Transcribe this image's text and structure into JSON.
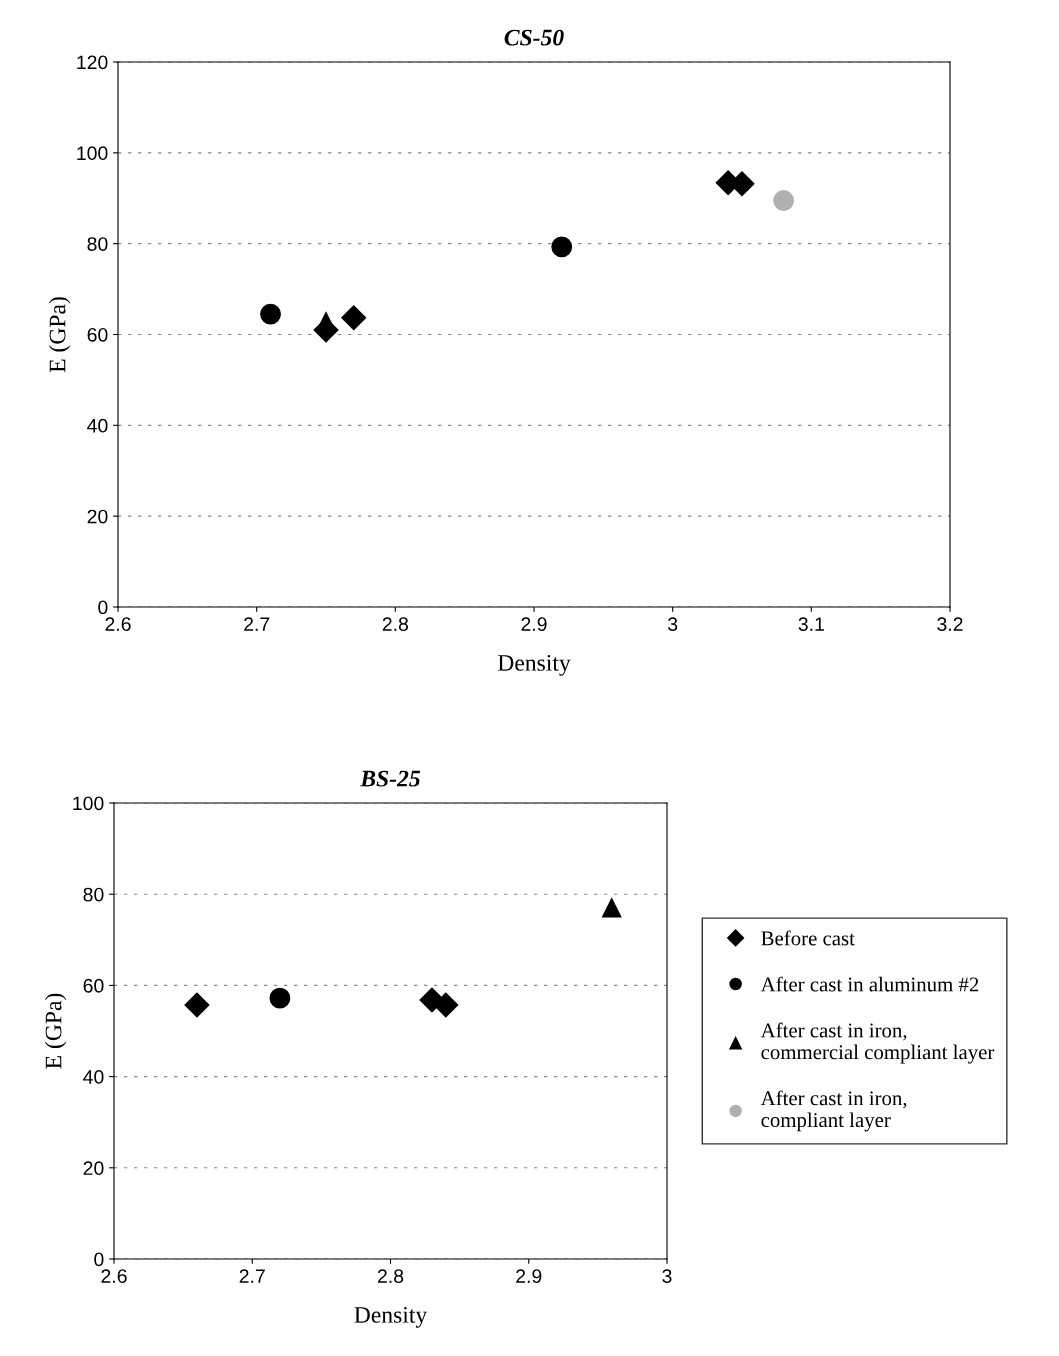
{
  "chart_data": [
    {
      "type": "scatter",
      "title": "CS-50",
      "xlabel": "Density",
      "ylabel": "E (GPa)",
      "xlim": [
        2.6,
        3.2
      ],
      "xticks": [
        2.6,
        2.7,
        2.8,
        2.9,
        3,
        3.1,
        3.2
      ],
      "ylim": [
        0,
        120
      ],
      "yticks": [
        0,
        20,
        40,
        60,
        80,
        100,
        120
      ],
      "grid": "y",
      "series": [
        {
          "color": "#000000",
          "marker": "diamond",
          "x": [
            2.75,
            2.77,
            3.04,
            3.05
          ],
          "values": [
            61,
            63.7,
            93.4,
            93.2
          ]
        },
        {
          "color": "#000000",
          "marker": "circle",
          "x": [
            2.71,
            2.92
          ],
          "values": [
            64.5,
            79.3
          ]
        },
        {
          "color": "#000000",
          "marker": "triangle",
          "x": [
            2.75
          ],
          "values": [
            62.8
          ]
        },
        {
          "color": "#b0b0b0",
          "marker": "circle",
          "x": [
            3.08
          ],
          "values": [
            89.5
          ]
        }
      ]
    },
    {
      "type": "scatter",
      "title": "BS-25",
      "xlabel": "Density",
      "ylabel": "E (GPa)",
      "xlim": [
        2.6,
        3.0
      ],
      "xticks": [
        2.6,
        2.7,
        2.8,
        2.9,
        3
      ],
      "ylim": [
        0,
        100
      ],
      "yticks": [
        0,
        20,
        40,
        60,
        80,
        100
      ],
      "grid": "y",
      "legend": "right",
      "series": [
        {
          "name": "Before cast",
          "color": "#000000",
          "marker": "diamond",
          "x": [
            2.66,
            2.83,
            2.84
          ],
          "values": [
            55.7,
            56.8,
            55.7
          ]
        },
        {
          "name": "After cast in aluminum #2",
          "color": "#000000",
          "marker": "circle",
          "x": [
            2.72
          ],
          "values": [
            57.2
          ]
        },
        {
          "name": "After cast in iron, commercial compliant layer",
          "color": "#000000",
          "marker": "triangle",
          "x": [
            2.96
          ],
          "values": [
            77
          ]
        },
        {
          "name": "After cast in iron, compliant layer",
          "color": "#b0b0b0",
          "marker": "circle"
        }
      ]
    }
  ]
}
